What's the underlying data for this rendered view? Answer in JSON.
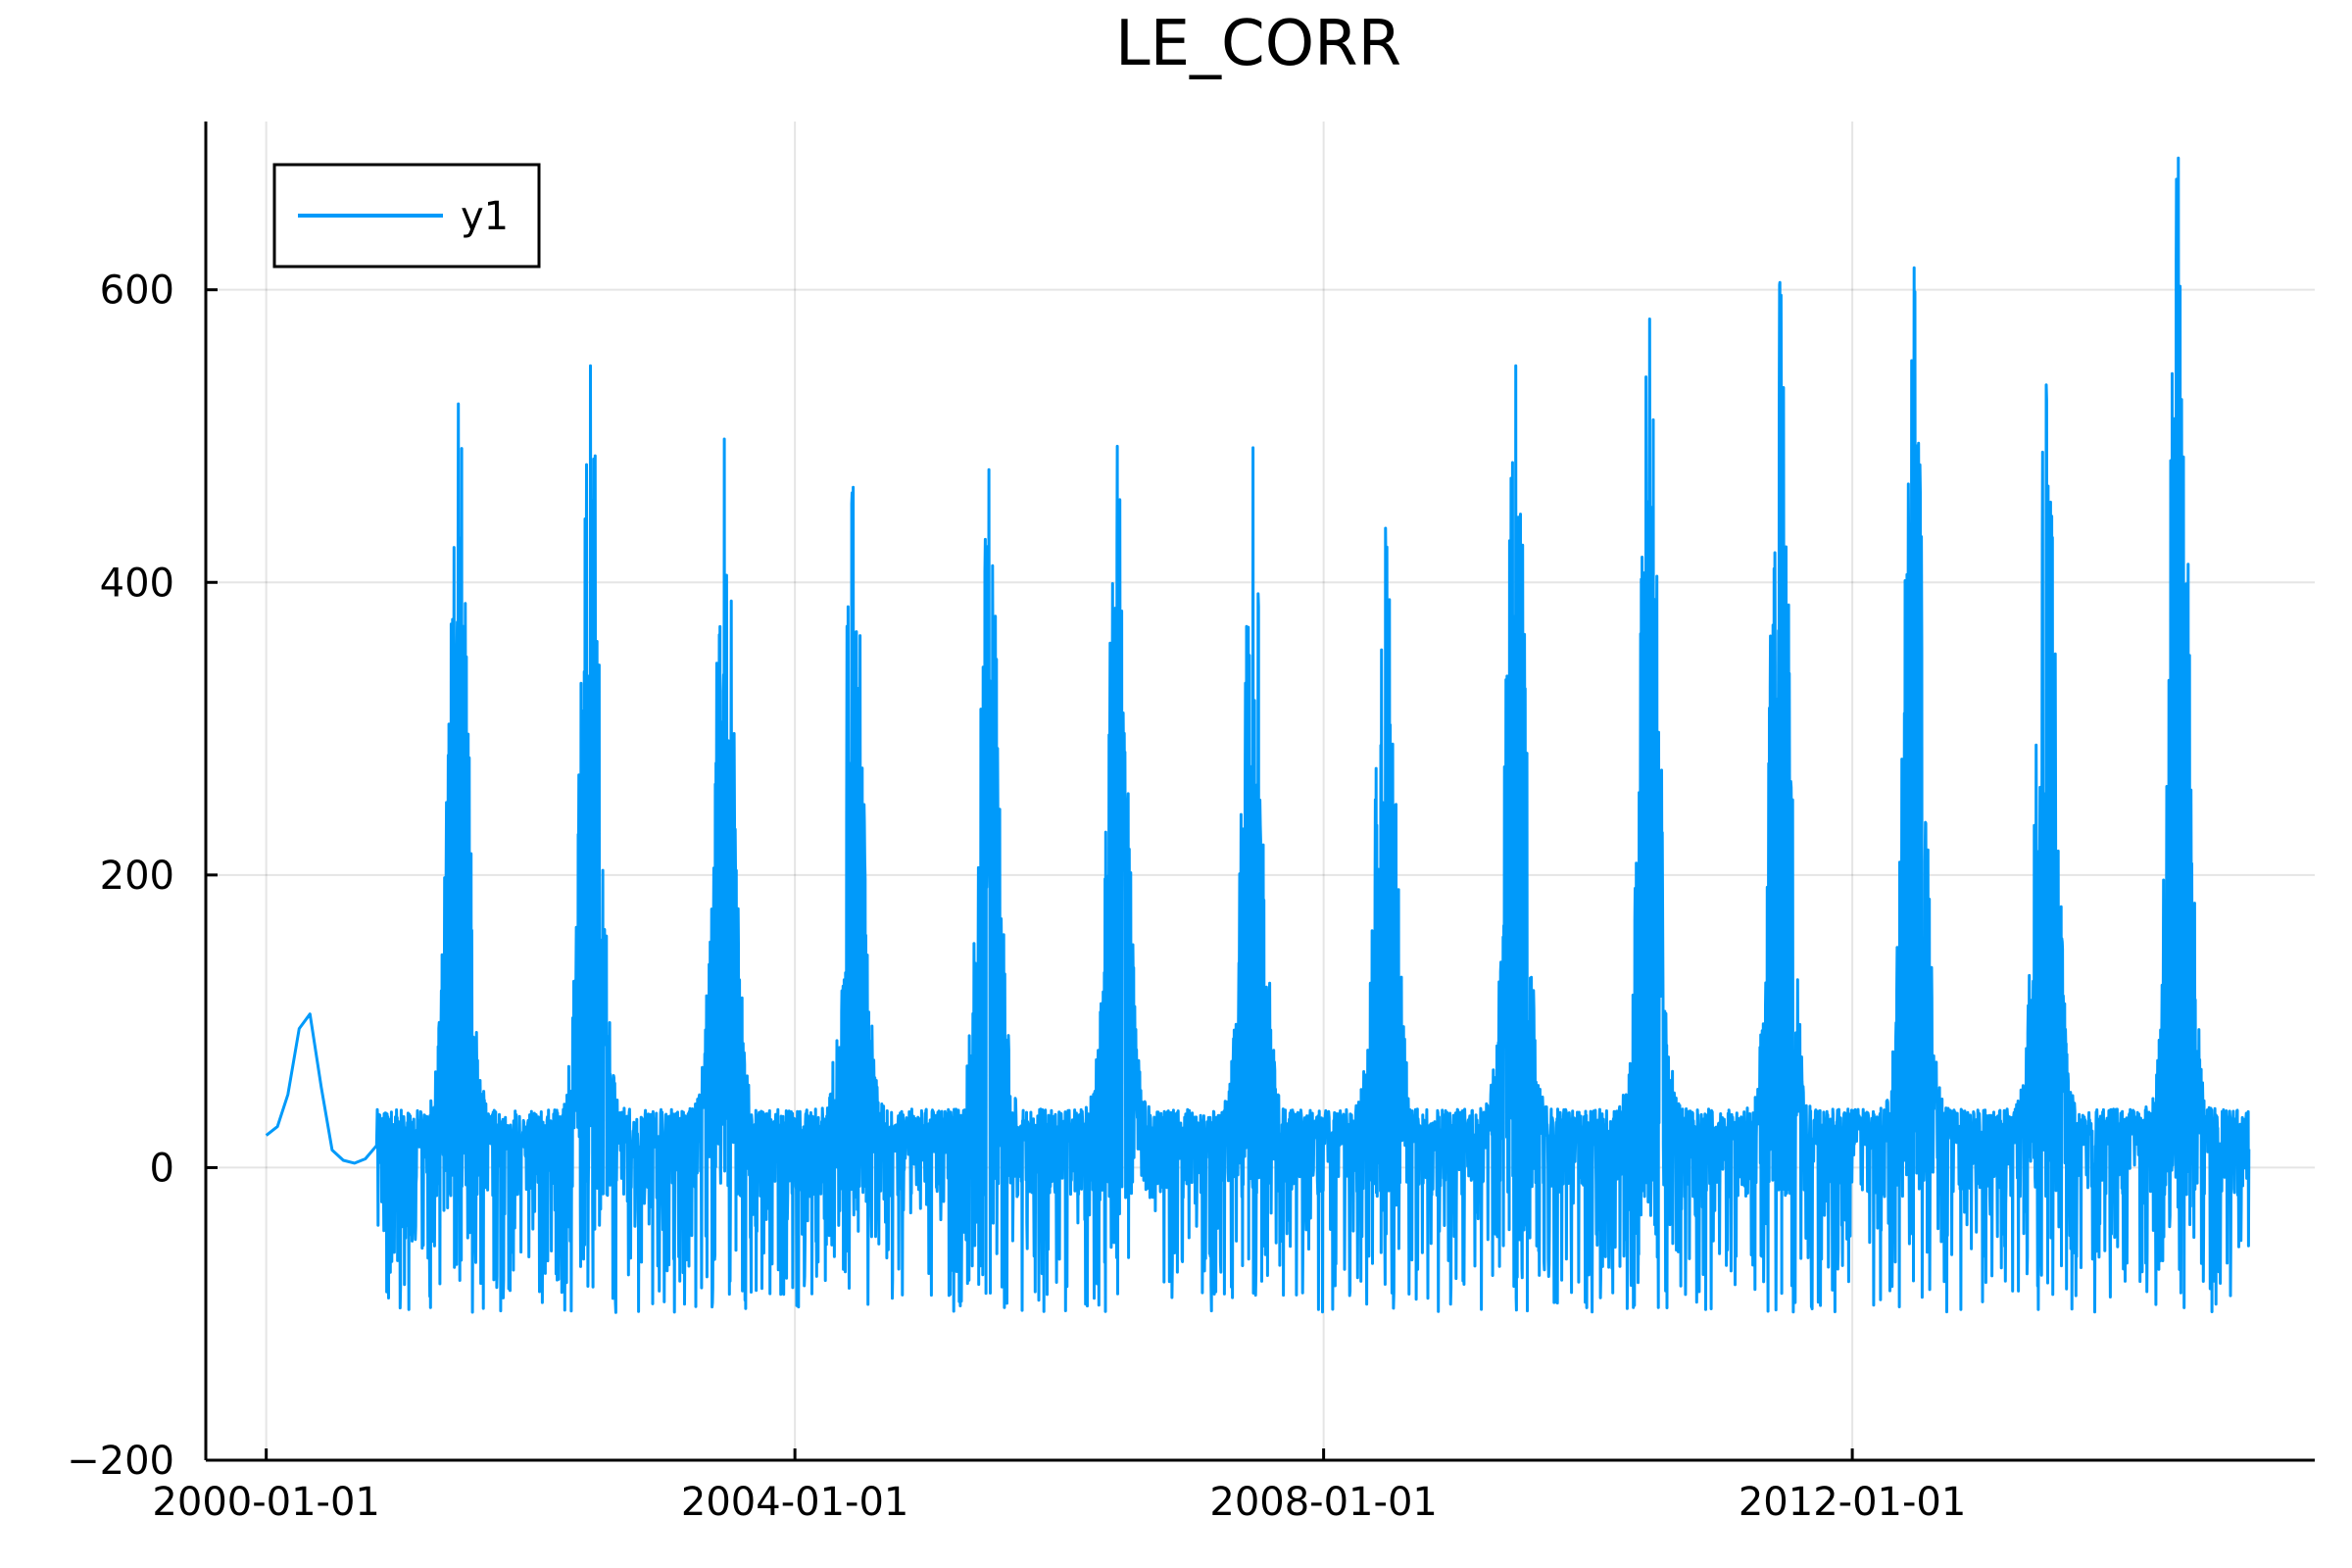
{
  "chart_data": {
    "type": "line",
    "title": "LE_CORR",
    "xlabel": "",
    "ylabel": "",
    "x_axis_kind": "date",
    "xlim": [
      "1999-07-18",
      "2015-07-02"
    ],
    "ylim": [
      -200,
      715
    ],
    "x_ticks": [
      "2000-01-01",
      "2004-01-01",
      "2008-01-01",
      "2012-01-01"
    ],
    "y_ticks": [
      -200,
      0,
      200,
      400,
      600
    ],
    "y_tick_labels": [
      "−200",
      "0",
      "200",
      "400",
      "600"
    ],
    "grid": true,
    "legend": {
      "position": "top-left",
      "entries": [
        "y1"
      ]
    },
    "series": [
      {
        "name": "y1",
        "color": "#009AFA",
        "x_start": "2000-01-01",
        "x_end": "2015-01-01",
        "smooth_segment": {
          "x": [
            "2000-01-01",
            "2000-02-01",
            "2000-03-01",
            "2000-04-01",
            "2000-05-01",
            "2000-06-01",
            "2000-07-01",
            "2000-08-01",
            "2000-09-01",
            "2000-10-01",
            "2000-11-01"
          ],
          "y": [
            22,
            28,
            50,
            95,
            105,
            55,
            12,
            5,
            3,
            6,
            15
          ]
        },
        "approx_range": [
          -178,
          690
        ],
        "seasonal_peaks": [
          {
            "year": 2001,
            "peak_date": "2001-06-15",
            "peak": 522
          },
          {
            "year": 2002,
            "peak_date": "2002-06-15",
            "peak": 548
          },
          {
            "year": 2003,
            "peak_date": "2003-06-20",
            "peak": 498
          },
          {
            "year": 2004,
            "peak_date": "2004-06-10",
            "peak": 465
          },
          {
            "year": 2005,
            "peak_date": "2005-06-20",
            "peak": 477
          },
          {
            "year": 2006,
            "peak_date": "2006-06-10",
            "peak": 493
          },
          {
            "year": 2007,
            "peak_date": "2007-06-20",
            "peak": 492
          },
          {
            "year": 2008,
            "peak_date": "2008-06-20",
            "peak": 437
          },
          {
            "year": 2009,
            "peak_date": "2009-06-15",
            "peak": 548
          },
          {
            "year": 2010,
            "peak_date": "2010-06-20",
            "peak": 580
          },
          {
            "year": 2011,
            "peak_date": "2011-06-15",
            "peak": 605
          },
          {
            "year": 2012,
            "peak_date": "2012-06-20",
            "peak": 615
          },
          {
            "year": 2013,
            "peak_date": "2013-06-20",
            "peak": 535
          },
          {
            "year": 2014,
            "peak_date": "2014-06-20",
            "peak": 690
          }
        ]
      }
    ]
  }
}
